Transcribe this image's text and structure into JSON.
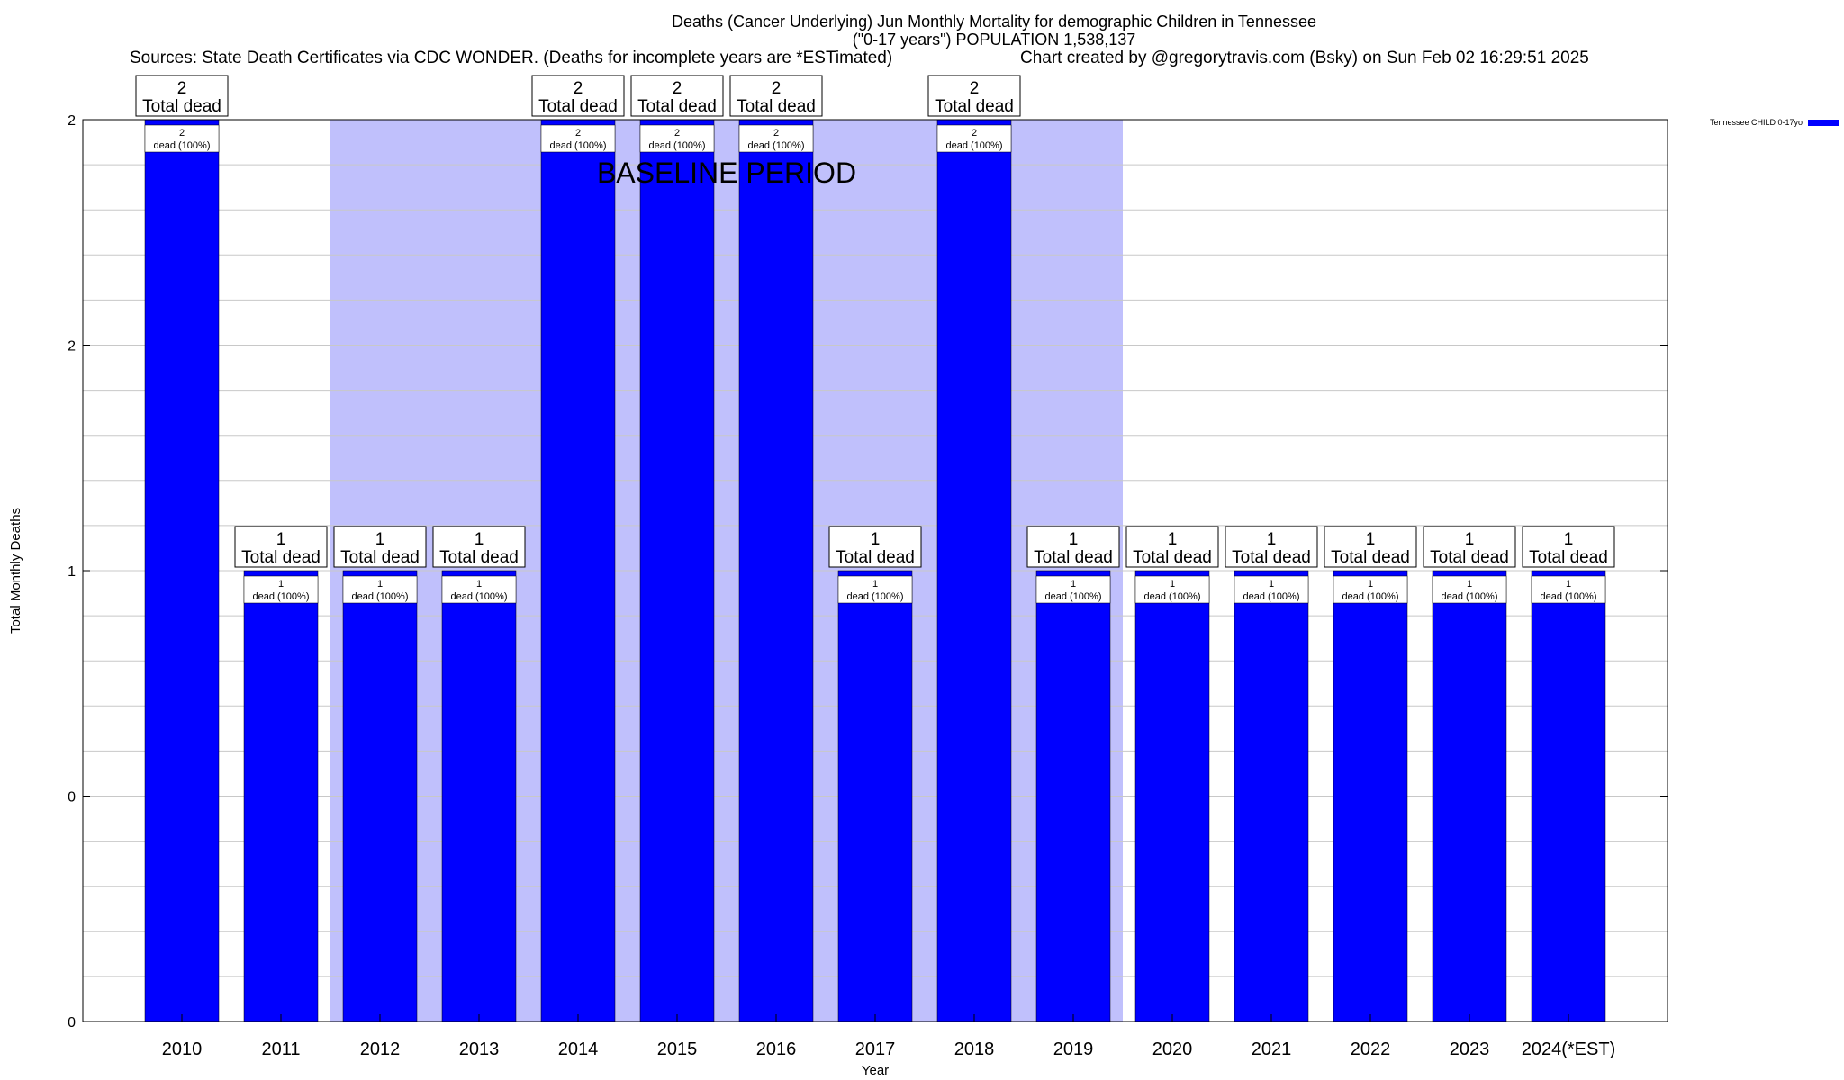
{
  "header": {
    "title_line1": "Deaths (Cancer Underlying) Jun Monthly Mortality for demographic Children in Tennessee",
    "title_line2": "(\"0-17 years\") POPULATION 1,538,137",
    "sources": "Sources: State Death Certificates via CDC WONDER. (Deaths for incomplete years are *ESTimated)",
    "credit": "Chart created by @gregorytravis.com (Bsky) on Sun Feb 02 16:29:51 2025"
  },
  "chart_data": {
    "type": "bar",
    "title": "Deaths (Cancer Underlying) Jun Monthly Mortality for demographic Children in Tennessee",
    "xlabel": "Year",
    "ylabel": "Total Monthly Deaths",
    "categories": [
      "2010",
      "2011",
      "2012",
      "2013",
      "2014",
      "2015",
      "2016",
      "2017",
      "2018",
      "2019",
      "2020",
      "2021",
      "2022",
      "2023",
      "2024(*EST)"
    ],
    "series": [
      {
        "name": "Tennessee CHILD 0-17yo",
        "values": [
          2,
          1,
          1,
          1,
          2,
          2,
          2,
          1,
          2,
          1,
          1,
          1,
          1,
          1,
          1
        ],
        "color": "#0000ff"
      }
    ],
    "ylim": [
      0,
      2
    ],
    "y_tick_labels": [
      "0",
      "0",
      "1",
      "2",
      "2"
    ],
    "bar_top_labels": [
      {
        "count": "2",
        "text": "Total dead"
      },
      {
        "count": "1",
        "text": "Total dead"
      },
      {
        "count": "1",
        "text": "Total dead"
      },
      {
        "count": "1",
        "text": "Total dead"
      },
      {
        "count": "2",
        "text": "Total dead"
      },
      {
        "count": "2",
        "text": "Total dead"
      },
      {
        "count": "2",
        "text": "Total dead"
      },
      {
        "count": "1",
        "text": "Total dead"
      },
      {
        "count": "2",
        "text": "Total dead"
      },
      {
        "count": "1",
        "text": "Total dead"
      },
      {
        "count": "1",
        "text": "Total dead"
      },
      {
        "count": "1",
        "text": "Total dead"
      },
      {
        "count": "1",
        "text": "Total dead"
      },
      {
        "count": "1",
        "text": "Total dead"
      },
      {
        "count": "1",
        "text": "Total dead"
      }
    ],
    "bar_inner_labels": [
      {
        "count": "2",
        "text": "dead (100%)"
      },
      {
        "count": "1",
        "text": "dead (100%)"
      },
      {
        "count": "1",
        "text": "dead (100%)"
      },
      {
        "count": "1",
        "text": "dead (100%)"
      },
      {
        "count": "2",
        "text": "dead (100%)"
      },
      {
        "count": "2",
        "text": "dead (100%)"
      },
      {
        "count": "2",
        "text": "dead (100%)"
      },
      {
        "count": "1",
        "text": "dead (100%)"
      },
      {
        "count": "2",
        "text": "dead (100%)"
      },
      {
        "count": "1",
        "text": "dead (100%)"
      },
      {
        "count": "1",
        "text": "dead (100%)"
      },
      {
        "count": "1",
        "text": "dead (100%)"
      },
      {
        "count": "1",
        "text": "dead (100%)"
      },
      {
        "count": "1",
        "text": "dead (100%)"
      },
      {
        "count": "1",
        "text": "dead (100%)"
      }
    ],
    "baseline_period": {
      "label": "BASELINE PERIOD",
      "start_category": "2012",
      "end_category": "2019",
      "color": "#c0c0fc"
    },
    "grid": true,
    "legend_position": "top-right"
  }
}
